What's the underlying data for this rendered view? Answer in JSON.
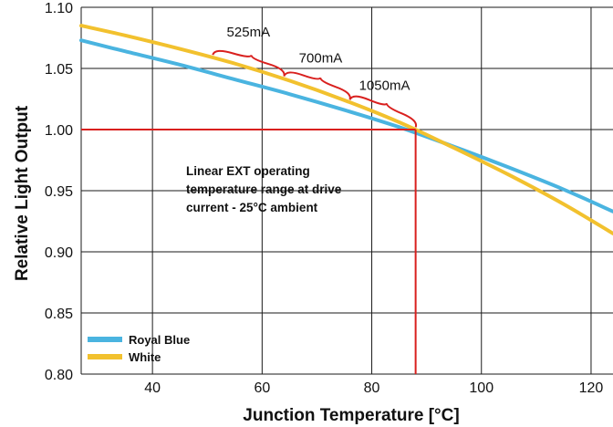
{
  "chart_data": {
    "type": "line",
    "xlabel": "Junction Temperature [°C]",
    "ylabel": "Relative Light Output",
    "xlim": [
      27,
      124
    ],
    "ylim": [
      0.8,
      1.1
    ],
    "x_ticks": [
      40,
      60,
      80,
      100,
      120
    ],
    "y_ticks": [
      0.8,
      0.85,
      0.9,
      0.95,
      1.0,
      1.05,
      1.1
    ],
    "x_tick_labels": [
      "40",
      "60",
      "80",
      "100",
      "120"
    ],
    "y_tick_labels": [
      "0.80",
      "0.85",
      "0.90",
      "0.95",
      "1.00",
      "1.05",
      "1.10"
    ],
    "grid": true,
    "legend_position": "bottom-left",
    "series": [
      {
        "name": "Royal Blue",
        "color": "#4ab4e0",
        "x": [
          27,
          35,
          45,
          55,
          65,
          75,
          85,
          95,
          105,
          115,
          124
        ],
        "y": [
          1.073,
          1.064,
          1.053,
          1.041,
          1.029,
          1.016,
          1.002,
          0.986,
          0.969,
          0.951,
          0.933
        ]
      },
      {
        "name": "White",
        "color": "#f2c12e",
        "x": [
          27,
          35,
          45,
          55,
          65,
          75,
          85,
          95,
          105,
          115,
          124
        ],
        "y": [
          1.085,
          1.077,
          1.066,
          1.054,
          1.04,
          1.024,
          1.006,
          0.985,
          0.963,
          0.939,
          0.915
        ]
      }
    ],
    "reference": {
      "color": "#d9201e",
      "y": 1.0,
      "x": 88
    },
    "annotations": {
      "operating_range_note": [
        "Linear EXT operating",
        "temperature range at drive",
        "current - 25°C ambient"
      ],
      "currents": [
        {
          "label": "525mA",
          "x_start": 51,
          "x_end": 64
        },
        {
          "label": "700mA",
          "x_start": 64,
          "x_end": 76
        },
        {
          "label": "1050mA",
          "x_start": 76,
          "x_end": 88
        }
      ]
    }
  }
}
